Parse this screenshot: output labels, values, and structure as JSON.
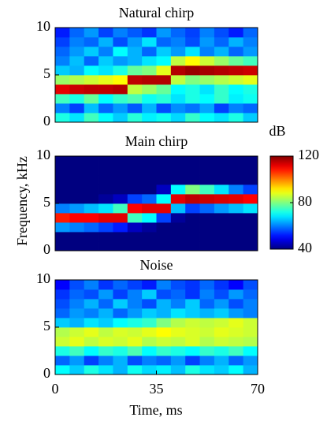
{
  "chart_data": [
    {
      "type": "heatmap",
      "title": "Natural chirp",
      "xlim": [
        0,
        70
      ],
      "ylim": [
        0,
        10
      ],
      "yticks": [
        0,
        5,
        10
      ],
      "z": [
        [
          72,
          68,
          75,
          70,
          66,
          73,
          69,
          71,
          67,
          74,
          70,
          68,
          72,
          66
        ],
        [
          60,
          55,
          65,
          58,
          62,
          57,
          64,
          56,
          61,
          59,
          63,
          55,
          60,
          58
        ],
        [
          75,
          72,
          78,
          70,
          74,
          76,
          71,
          73,
          68,
          72,
          70,
          74,
          69,
          71
        ],
        [
          112,
          114,
          115,
          115,
          116,
          85,
          82,
          78,
          70,
          72,
          68,
          74,
          70,
          72
        ],
        [
          82,
          84,
          86,
          88,
          90,
          115,
          116,
          116,
          85,
          80,
          82,
          84,
          86,
          88
        ],
        [
          66,
          64,
          70,
          68,
          72,
          78,
          80,
          88,
          116,
          118,
          117,
          116,
          115,
          114
        ],
        [
          60,
          65,
          58,
          66,
          62,
          64,
          68,
          70,
          85,
          90,
          86,
          82,
          78,
          75
        ],
        [
          58,
          62,
          66,
          60,
          70,
          64,
          58,
          66,
          62,
          68,
          60,
          64,
          58,
          62
        ],
        [
          55,
          60,
          58,
          64,
          56,
          62,
          68,
          58,
          60,
          56,
          62,
          58,
          64,
          60
        ],
        [
          52,
          58,
          62,
          55,
          60,
          57,
          54,
          62,
          58,
          55,
          60,
          56,
          52,
          58
        ]
      ]
    },
    {
      "type": "heatmap",
      "title": "Main chirp",
      "xlim": [
        0,
        70
      ],
      "ylim": [
        0,
        10
      ],
      "yticks": [
        0,
        5,
        10
      ],
      "z": [
        [
          40,
          40,
          40,
          40,
          40,
          40,
          40,
          40,
          40,
          40,
          40,
          40,
          40,
          40
        ],
        [
          40,
          40,
          40,
          40,
          40,
          40,
          40,
          40,
          40,
          40,
          40,
          40,
          40,
          40
        ],
        [
          62,
          60,
          58,
          55,
          52,
          45,
          42,
          40,
          40,
          40,
          40,
          40,
          40,
          40
        ],
        [
          108,
          110,
          110,
          112,
          112,
          75,
          70,
          55,
          42,
          40,
          40,
          40,
          40,
          40
        ],
        [
          60,
          62,
          65,
          68,
          75,
          110,
          112,
          112,
          65,
          55,
          58,
          62,
          65,
          68
        ],
        [
          40,
          40,
          40,
          42,
          45,
          55,
          58,
          70,
          112,
          115,
          114,
          113,
          112,
          110
        ],
        [
          40,
          40,
          40,
          40,
          40,
          40,
          40,
          45,
          70,
          80,
          75,
          68,
          60,
          55
        ],
        [
          40,
          40,
          40,
          40,
          40,
          40,
          40,
          40,
          40,
          40,
          40,
          40,
          40,
          40
        ],
        [
          40,
          40,
          40,
          40,
          40,
          40,
          40,
          40,
          40,
          40,
          40,
          40,
          40,
          40
        ],
        [
          40,
          40,
          40,
          40,
          40,
          40,
          40,
          40,
          40,
          40,
          40,
          40,
          40,
          40
        ]
      ]
    },
    {
      "type": "heatmap",
      "title": "Noise",
      "xlim": [
        0,
        70
      ],
      "ylim": [
        0,
        10
      ],
      "yticks": [
        0,
        5,
        10
      ],
      "xticks": [
        0,
        35,
        70
      ],
      "z": [
        [
          70,
          66,
          72,
          68,
          64,
          71,
          67,
          69,
          65,
          72,
          68,
          66,
          70,
          64
        ],
        [
          58,
          62,
          55,
          60,
          64,
          56,
          60,
          58,
          62,
          55,
          60,
          64,
          58,
          62
        ],
        [
          72,
          75,
          70,
          74,
          72,
          76,
          70,
          74,
          72,
          70,
          74,
          72,
          75,
          70
        ],
        [
          86,
          88,
          85,
          87,
          86,
          88,
          84,
          86,
          85,
          87,
          84,
          86,
          85,
          84
        ],
        [
          84,
          86,
          88,
          85,
          87,
          86,
          88,
          90,
          88,
          87,
          86,
          88,
          87,
          86
        ],
        [
          66,
          64,
          68,
          66,
          70,
          72,
          74,
          80,
          84,
          86,
          85,
          86,
          88,
          86
        ],
        [
          58,
          62,
          60,
          64,
          58,
          62,
          66,
          64,
          68,
          66,
          64,
          66,
          62,
          60
        ],
        [
          56,
          60,
          64,
          58,
          66,
          60,
          56,
          64,
          60,
          66,
          58,
          62,
          56,
          60
        ],
        [
          54,
          58,
          56,
          62,
          55,
          60,
          66,
          56,
          58,
          54,
          60,
          56,
          62,
          58
        ],
        [
          50,
          56,
          60,
          54,
          58,
          55,
          52,
          60,
          56,
          54,
          58,
          54,
          50,
          56
        ]
      ]
    }
  ],
  "shared": {
    "ylabel": "Frequency, kHz",
    "xlabel": "Time, ms",
    "colorbar_label": "dB",
    "zlim": [
      40,
      120
    ],
    "zticks": [
      40,
      80,
      120
    ],
    "colormap": "jet"
  }
}
